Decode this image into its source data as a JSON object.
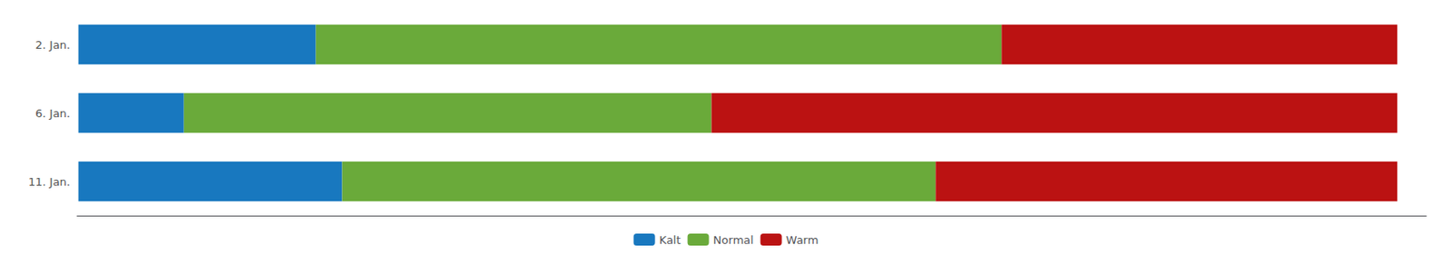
{
  "chart_data": {
    "type": "bar",
    "orientation": "horizontal",
    "stacked": true,
    "categories": [
      "2. Jan.",
      "6. Jan.",
      "11. Jan."
    ],
    "series": [
      {
        "name": "Kalt",
        "color": "#1878bf",
        "values": [
          0.18,
          0.08,
          0.2
        ]
      },
      {
        "name": "Normal",
        "color": "#6aaa3a",
        "values": [
          0.52,
          0.4,
          0.45
        ]
      },
      {
        "name": "Warm",
        "color": "#bb1212",
        "values": [
          0.3,
          0.52,
          0.35
        ]
      }
    ],
    "xlim": [
      -0.001,
      1.022
    ],
    "tick_labels": "y",
    "grid": false,
    "legend": "bottom"
  }
}
